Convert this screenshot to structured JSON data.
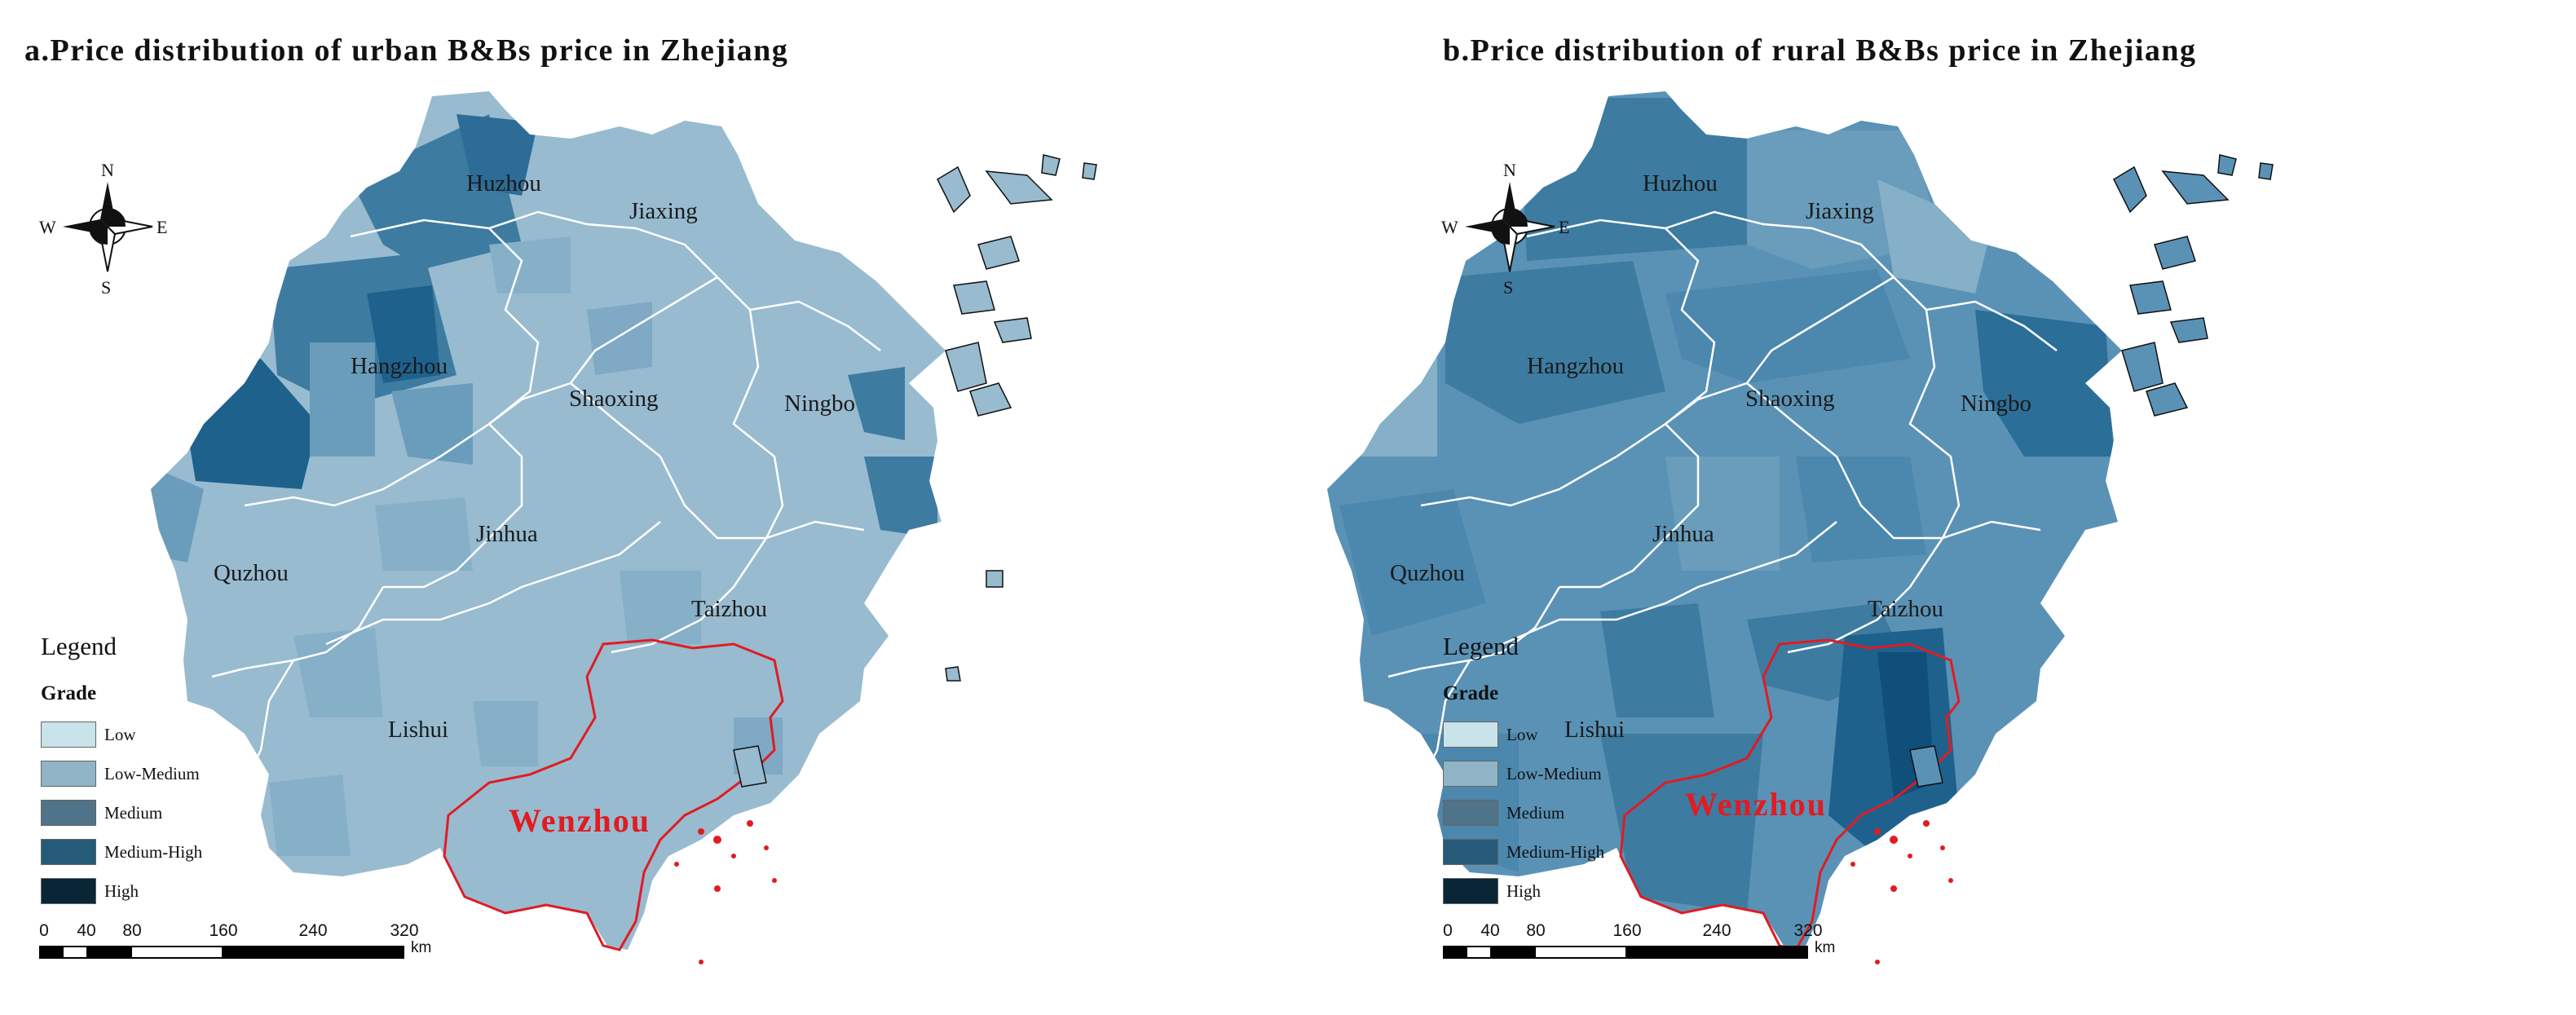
{
  "panels": {
    "a": {
      "title": "a.Price distribution of urban B&Bs price in Zhejiang",
      "cities": {
        "huzhou": "Huzhou",
        "jiaxing": "Jiaxing",
        "hangzhou": "Hangzhou",
        "shaoxing": "Shaoxing",
        "ningbo": "Ningbo",
        "jinhua": "Jinhua",
        "quzhou": "Quzhou",
        "taizhou": "Taizhou",
        "lishui": "Lishui",
        "wenzhou": "Wenzhou"
      }
    },
    "b": {
      "title": "b.Price distribution of rural B&Bs price in Zhejiang",
      "cities": {
        "huzhou": "Huzhou",
        "jiaxing": "Jiaxing",
        "hangzhou": "Hangzhou",
        "shaoxing": "Shaoxing",
        "ningbo": "Ningbo",
        "jinhua": "Jinhua",
        "quzhou": "Quzhou",
        "taizhou": "Taizhou",
        "lishui": "Lishui",
        "wenzhou": "Wenzhou"
      }
    }
  },
  "compass": {
    "n": "N",
    "s": "S",
    "e": "E",
    "w": "W"
  },
  "legend": {
    "title": "Legend",
    "grade_label": "Grade",
    "items": [
      {
        "label": "Low",
        "color": "#c8e3e9"
      },
      {
        "label": "Low-Medium",
        "color": "#8fb4c6"
      },
      {
        "label": "Medium",
        "color": "#4f7388"
      },
      {
        "label": "Medium-High",
        "color": "#255a78"
      },
      {
        "label": "High",
        "color": "#0a2536"
      }
    ]
  },
  "scale": {
    "ticks": [
      "0",
      "40",
      "80",
      "160",
      "240",
      "320"
    ],
    "unit": "km"
  },
  "colors": {
    "low_medium": "#98bbd0",
    "medium": "#6a9dbb",
    "medium_high": "#3d7ba1",
    "high": "#1e618d",
    "boundary": "#ffffff",
    "highlight": "#e11b22"
  }
}
